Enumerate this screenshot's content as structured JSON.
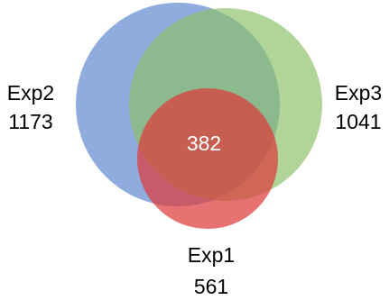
{
  "chart_data": {
    "type": "venn",
    "sets": [
      {
        "name": "Exp2",
        "size": "1173",
        "color": "#5b84cf"
      },
      {
        "name": "Exp3",
        "size": "1041",
        "color": "#8cc069"
      },
      {
        "name": "Exp1",
        "size": "561",
        "color": "#dd3b3b"
      }
    ],
    "intersection_all": "382"
  }
}
